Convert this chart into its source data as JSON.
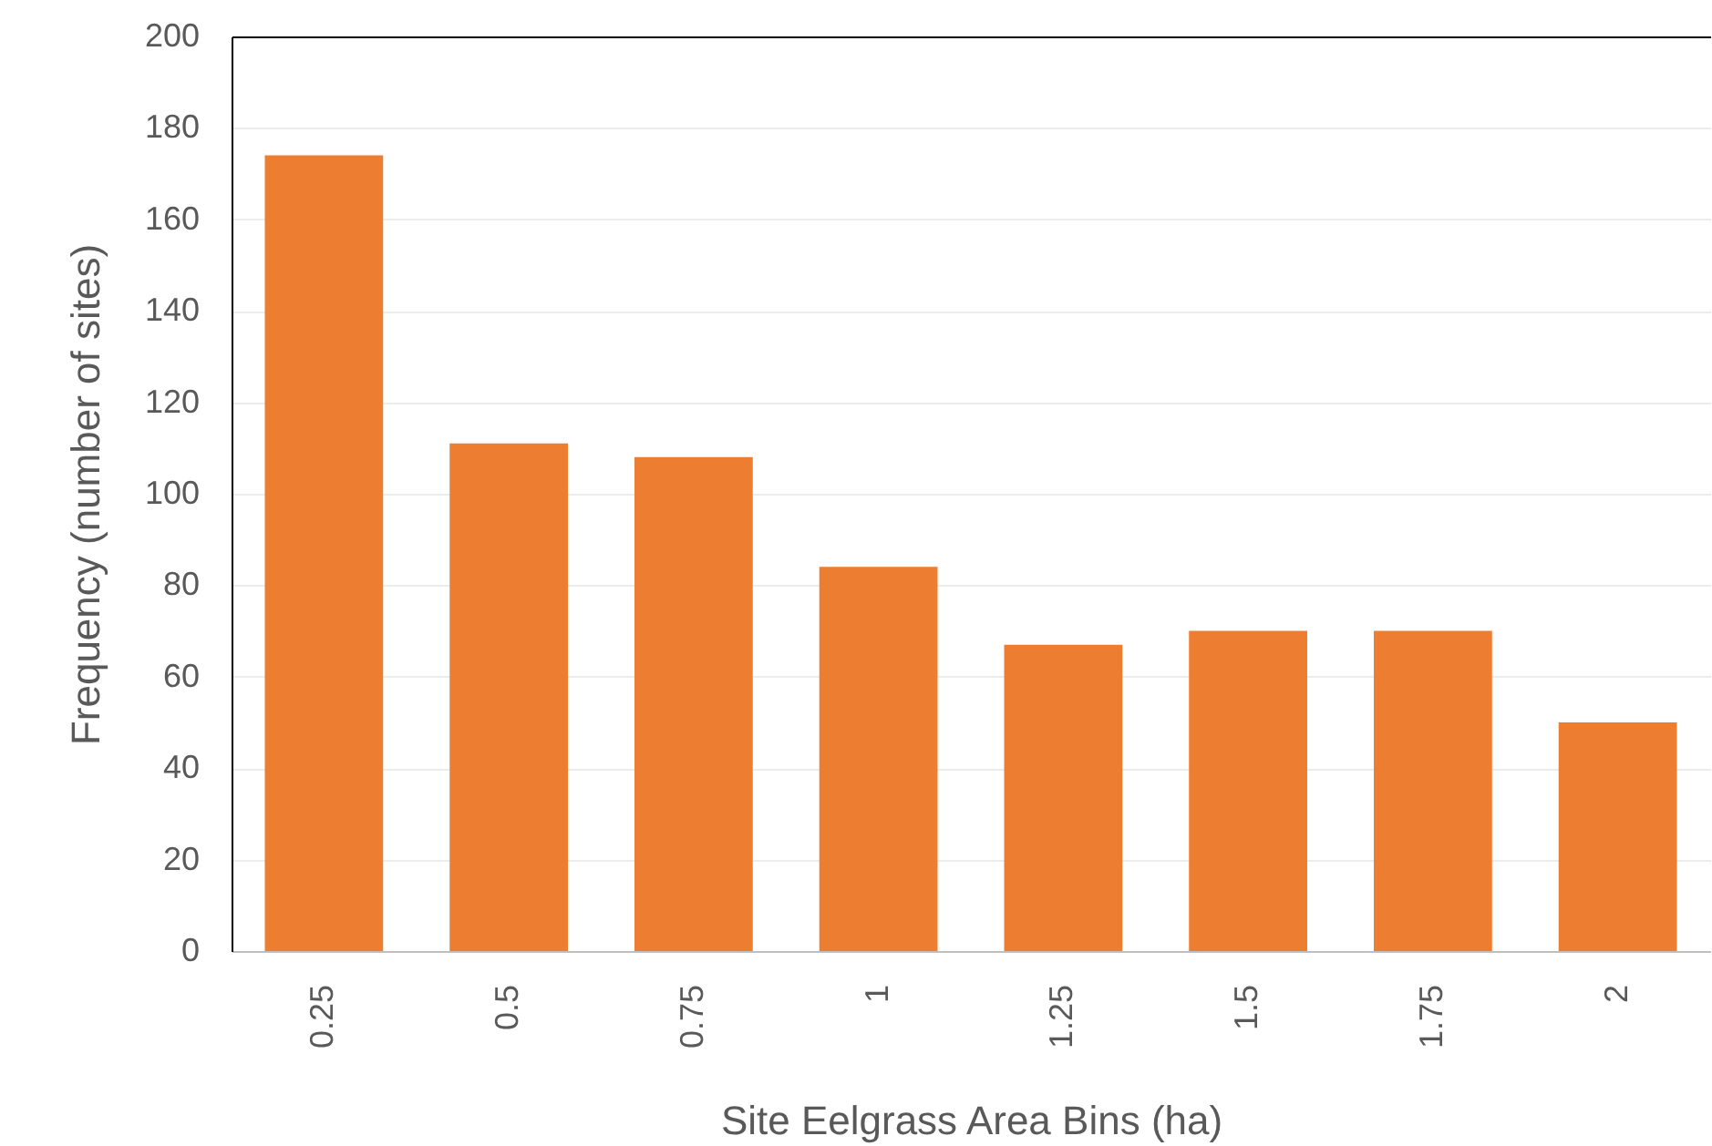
{
  "chart_data": {
    "type": "bar",
    "xlabel": "Site Eelgrass Area Bins (ha)",
    "ylabel": "Frequency (number of sites)",
    "categories": [
      "0.25",
      "0.5",
      "0.75",
      "1",
      "1.25",
      "1.5",
      "1.75",
      "2"
    ],
    "values": [
      174,
      111,
      108,
      84,
      67,
      70,
      70,
      50
    ],
    "color": "#ed7d31",
    "ylim": [
      0,
      200
    ],
    "yticks": [
      0,
      20,
      40,
      60,
      80,
      100,
      120,
      140,
      160,
      180,
      200
    ],
    "grid": "y"
  }
}
